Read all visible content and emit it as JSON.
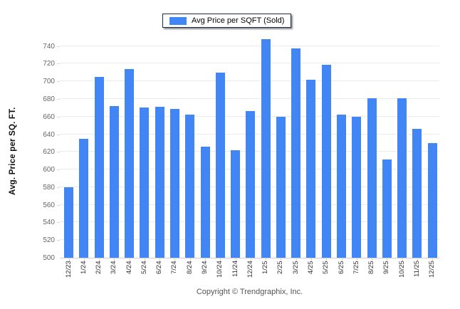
{
  "legend": {
    "label": "Avg Price per SQFT (Sold)"
  },
  "footer": {
    "copyright": "Copyright © Trendgraphix, Inc."
  },
  "colors": {
    "bar": "#4285f4",
    "gridline": "#ebebeb",
    "axis_line": "#cfcfcf",
    "y_tick_text": "#666666",
    "x_tick_text": "#333333",
    "y_title_text": "#111111",
    "legend_border": "#1a2b4c",
    "footer_text": "#555555",
    "background": "#ffffff"
  },
  "chart_data": {
    "type": "bar",
    "title": "",
    "legend_label": "Avg Price per SQFT (Sold)",
    "legend_position": "top-center",
    "ylabel": "Avg. Price per SQ. FT.",
    "xlabel": "",
    "grid": true,
    "ylim": [
      500,
      755
    ],
    "ytick_step": 20,
    "yticks": [
      500,
      520,
      540,
      560,
      580,
      600,
      620,
      640,
      660,
      680,
      700,
      720,
      740
    ],
    "categories": [
      "12/23",
      "1/24",
      "2/24",
      "3/24",
      "4/24",
      "5/24",
      "6/24",
      "7/24",
      "8/24",
      "9/24",
      "10/24",
      "11/24",
      "12/24",
      "1/25",
      "2/25",
      "3/25",
      "4/25",
      "5/25",
      "6/25",
      "7/25",
      "8/25",
      "9/25",
      "10/25",
      "11/25",
      "12/25"
    ],
    "series": [
      {
        "name": "Avg Price per SQFT (Sold)",
        "values": [
          580,
          635,
          705,
          672,
          714,
          670,
          671,
          669,
          662,
          626,
          710,
          622,
          666,
          748,
          660,
          737,
          702,
          719,
          662,
          660,
          681,
          611,
          681,
          646,
          630
        ]
      }
    ]
  }
}
